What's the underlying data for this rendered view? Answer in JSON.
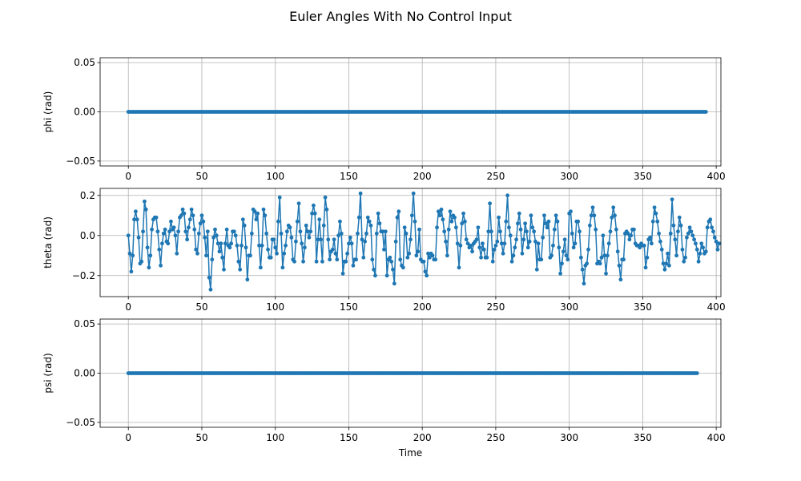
{
  "figure": {
    "title": "Euler Angles With No Control Input",
    "line_color": "#1f77b4",
    "grid_color": "#b0b0b0"
  },
  "chart_data": [
    {
      "type": "line",
      "ylabel": "phi (rad)",
      "xlabel": "",
      "x_start": 0,
      "x_step": 1,
      "values": [
        0,
        0,
        0,
        0,
        0,
        0,
        0,
        0,
        0,
        0,
        0,
        0,
        0,
        0,
        0,
        0,
        0,
        0,
        0,
        0,
        0,
        0,
        0,
        0,
        0,
        0,
        0,
        0,
        0,
        0,
        0,
        0,
        0,
        0,
        0,
        0,
        0,
        0,
        0,
        0,
        0,
        0,
        0,
        0,
        0,
        0,
        0,
        0,
        0,
        0,
        0,
        0,
        0,
        0,
        0,
        0,
        0,
        0,
        0,
        0,
        0,
        0,
        0,
        0,
        0,
        0,
        0,
        0,
        0,
        0,
        0,
        0,
        0,
        0,
        0,
        0,
        0,
        0,
        0,
        0,
        0,
        0,
        0,
        0,
        0,
        0,
        0,
        0,
        0,
        0,
        0,
        0,
        0,
        0,
        0,
        0,
        0,
        0,
        0,
        0,
        0,
        0,
        0,
        0,
        0,
        0,
        0,
        0,
        0,
        0,
        0,
        0,
        0,
        0,
        0,
        0,
        0,
        0,
        0,
        0,
        0,
        0,
        0,
        0,
        0,
        0,
        0,
        0,
        0,
        0,
        0,
        0,
        0,
        0,
        0,
        0,
        0,
        0,
        0,
        0,
        0,
        0,
        0,
        0,
        0,
        0,
        0,
        0,
        0,
        0,
        0,
        0,
        0,
        0,
        0,
        0,
        0,
        0,
        0,
        0,
        0,
        0,
        0,
        0,
        0,
        0,
        0,
        0,
        0,
        0,
        0,
        0,
        0,
        0,
        0,
        0,
        0,
        0,
        0,
        0,
        0,
        0,
        0,
        0,
        0,
        0,
        0,
        0,
        0,
        0,
        0,
        0,
        0,
        0,
        0,
        0,
        0,
        0,
        0,
        0,
        0,
        0,
        0,
        0,
        0,
        0,
        0,
        0,
        0,
        0,
        0,
        0,
        0,
        0,
        0,
        0,
        0,
        0,
        0,
        0,
        0,
        0,
        0,
        0,
        0,
        0,
        0,
        0,
        0,
        0,
        0,
        0,
        0,
        0,
        0,
        0,
        0,
        0,
        0,
        0,
        0,
        0,
        0,
        0,
        0,
        0,
        0,
        0,
        0,
        0,
        0,
        0,
        0,
        0,
        0,
        0,
        0,
        0,
        0,
        0,
        0,
        0,
        0,
        0,
        0,
        0,
        0,
        0,
        0,
        0,
        0,
        0,
        0,
        0,
        0,
        0,
        0,
        0,
        0,
        0,
        0,
        0,
        0,
        0,
        0,
        0,
        0,
        0,
        0,
        0,
        0,
        0,
        0,
        0,
        0,
        0,
        0,
        0,
        0,
        0,
        0,
        0,
        0,
        0,
        0,
        0,
        0,
        0,
        0,
        0,
        0,
        0,
        0,
        0,
        0,
        0,
        0,
        0,
        0,
        0,
        0,
        0,
        0,
        0,
        0,
        0,
        0,
        0,
        0,
        0,
        0,
        0,
        0,
        0,
        0,
        0,
        0,
        0,
        0,
        0,
        0,
        0,
        0,
        0,
        0,
        0,
        0,
        0,
        0,
        0,
        0,
        0,
        0,
        0,
        0,
        0,
        0,
        0,
        0,
        0,
        0,
        0,
        0,
        0,
        0,
        0,
        0,
        0,
        0,
        0,
        0,
        0,
        0,
        0,
        0,
        0,
        0,
        0,
        0,
        0,
        0,
        0,
        0,
        0,
        0,
        0,
        0,
        0,
        0,
        0,
        0,
        0,
        0,
        0
      ],
      "xlim": [
        -19.2,
        403.2
      ],
      "ylim": [
        -0.055,
        0.055
      ],
      "xticks": [
        0,
        50,
        100,
        150,
        200,
        250,
        300,
        350,
        400
      ],
      "yticks": [
        -0.05,
        0.0,
        0.05
      ],
      "ytick_labels": [
        "−0.05",
        "0.00",
        "0.05"
      ],
      "grid": true,
      "marker": "circle"
    },
    {
      "type": "line",
      "ylabel": "theta (rad)",
      "xlabel": "",
      "x_start": 0,
      "x_step": 1,
      "values": [
        0,
        -0.09,
        -0.18,
        -0.1,
        0.08,
        0.12,
        0.08,
        -0.01,
        -0.14,
        -0.13,
        0.02,
        0.17,
        0.13,
        -0.06,
        -0.16,
        -0.1,
        0.03,
        0.08,
        0.09,
        0.09,
        0.02,
        -0.07,
        -0.15,
        -0.04,
        0.01,
        0.03,
        -0.03,
        -0.04,
        0.02,
        0.07,
        0.03,
        0.04,
        0.0,
        -0.09,
        0.02,
        0.09,
        0.1,
        0.13,
        0.11,
        0.02,
        -0.02,
        0.04,
        0.08,
        0.13,
        0.1,
        0.03,
        -0.07,
        -0.09,
        0.01,
        0.06,
        0.1,
        0.07,
        -0.01,
        -0.1,
        0.02,
        -0.21,
        -0.27,
        -0.12,
        -0.01,
        0.03,
        0.0,
        -0.04,
        -0.08,
        -0.04,
        -0.11,
        -0.17,
        -0.04,
        0.03,
        -0.05,
        -0.06,
        -0.04,
        0.02,
        0.02,
        0.0,
        -0.05,
        -0.13,
        -0.17,
        -0.05,
        0.08,
        0.05,
        -0.06,
        -0.22,
        -0.1,
        -0.1,
        0.01,
        0.13,
        0.12,
        0.08,
        0.11,
        -0.05,
        -0.16,
        -0.05,
        0.13,
        0.1,
        0.01,
        -0.07,
        -0.11,
        -0.11,
        -0.02,
        -0.02,
        -0.06,
        -0.09,
        0.07,
        0.19,
        0.01,
        -0.16,
        -0.09,
        -0.05,
        0.02,
        0.05,
        0.04,
        -0.01,
        -0.12,
        -0.13,
        -0.03,
        0.07,
        0.16,
        0.02,
        -0.04,
        -0.13,
        -0.06,
        0.05,
        0.02,
        -0.01,
        0.02,
        0.11,
        0.15,
        0.11,
        -0.13,
        -0.02,
        0.08,
        -0.02,
        -0.13,
        0.05,
        0.19,
        0.13,
        -0.02,
        -0.12,
        -0.08,
        -0.07,
        -0.02,
        -0.09,
        -0.12,
        0.0,
        0.07,
        0.01,
        -0.19,
        -0.13,
        -0.13,
        -0.09,
        -0.04,
        -0.01,
        -0.04,
        -0.15,
        -0.12,
        -0.12,
        0.01,
        0.09,
        0.21,
        -0.02,
        -0.11,
        -0.03,
        0.01,
        0.09,
        0.07,
        0.05,
        -0.12,
        -0.17,
        -0.2,
        0.01,
        0.11,
        0.06,
        0.02,
        0.02,
        -0.07,
        0.02,
        -0.2,
        -0.12,
        -0.11,
        -0.13,
        -0.17,
        -0.24,
        -0.03,
        0.09,
        0.12,
        -0.12,
        -0.15,
        -0.16,
        0.04,
        0.01,
        -0.11,
        -0.09,
        -0.02,
        0.1,
        0.21,
        0.07,
        -0.1,
        -0.08,
        0.03,
        -0.12,
        -0.13,
        -0.13,
        -0.18,
        -0.2,
        -0.09,
        -0.11,
        -0.09,
        -0.1,
        -0.12,
        -0.12,
        0.04,
        0.12,
        0.1,
        0.13,
        0.08,
        0.02,
        -0.03,
        -0.1,
        0.03,
        0.12,
        0.07,
        0.1,
        0.09,
        0.04,
        -0.04,
        -0.16,
        -0.05,
        0.06,
        0.11,
        0.07,
        -0.02,
        -0.04,
        -0.06,
        -0.05,
        -0.08,
        -0.04,
        -0.03,
        -0.02,
        0.04,
        -0.06,
        -0.11,
        -0.04,
        -0.07,
        -0.11,
        -0.11,
        0.02,
        0.16,
        0.02,
        -0.13,
        -0.07,
        -0.05,
        -0.03,
        0.09,
        0.02,
        -0.04,
        -0.09,
        -0.04,
        0.07,
        0.2,
        0.04,
        0.0,
        -0.13,
        -0.1,
        -0.06,
        -0.02,
        0.06,
        0.11,
        0.03,
        -0.09,
        -0.02,
        0.06,
        0.02,
        -0.06,
        -0.03,
        0.1,
        0.04,
        0.02,
        -0.03,
        -0.17,
        -0.04,
        -0.12,
        -0.12,
        -0.01,
        0.1,
        0.06,
        0.04,
        0.07,
        -0.11,
        -0.1,
        -0.05,
        0.03,
        0.1,
        0.07,
        -0.06,
        -0.19,
        -0.14,
        -0.08,
        -0.02,
        -0.1,
        -0.12,
        0.11,
        0.12,
        0.01,
        -0.06,
        -0.04,
        0.07,
        0.07,
        0.02,
        -0.11,
        -0.17,
        -0.24,
        -0.15,
        -0.14,
        -0.07,
        0.05,
        0.1,
        0.14,
        0.1,
        0.03,
        -0.14,
        -0.13,
        -0.14,
        -0.11,
        0.0,
        -0.1,
        -0.19,
        -0.1,
        -0.04,
        0.02,
        0.09,
        0.14,
        0.1,
        0.03,
        -0.08,
        -0.15,
        -0.22,
        -0.12,
        -0.12,
        0.01,
        0.02,
        0.01,
        -0.02,
        0.0,
        0.03,
        0.03,
        -0.04,
        -0.05,
        -0.05,
        -0.06,
        -0.04,
        -0.05,
        -0.05,
        -0.16,
        -0.11,
        -0.02,
        -0.01,
        -0.04,
        0.07,
        0.14,
        0.11,
        0.07,
        0.01,
        -0.03,
        -0.07,
        -0.14,
        -0.17,
        -0.14,
        -0.09,
        -0.15,
        0.01,
        0.18,
        0.05,
        -0.02,
        -0.1,
        0.02,
        0.09,
        0.05,
        -0.07,
        -0.13,
        -0.11,
        -0.01,
        0.01,
        0.04,
        0.02,
        0.0,
        -0.02,
        -0.04,
        -0.07,
        -0.13,
        -0.09,
        -0.04,
        -0.06,
        -0.09,
        -0.08,
        0.04,
        0.07,
        0.08,
        0.04,
        0.02,
        -0.01,
        -0.03,
        -0.07,
        -0.04
      ],
      "xlim": [
        -19.2,
        403.2
      ],
      "ylim": [
        -0.305,
        0.235
      ],
      "xticks": [
        0,
        50,
        100,
        150,
        200,
        250,
        300,
        350,
        400
      ],
      "yticks": [
        -0.2,
        0.0,
        0.2
      ],
      "ytick_labels": [
        "−0.2",
        "0.0",
        "0.2"
      ],
      "grid": true,
      "marker": "circle"
    },
    {
      "type": "line",
      "ylabel": "psi (rad)",
      "xlabel": "Time",
      "x_start": 0,
      "x_step": 1,
      "values": [
        0,
        0,
        0,
        0,
        0,
        0,
        0,
        0,
        0,
        0,
        0,
        0,
        0,
        0,
        0,
        0,
        0,
        0,
        0,
        0,
        0,
        0,
        0,
        0,
        0,
        0,
        0,
        0,
        0,
        0,
        0,
        0,
        0,
        0,
        0,
        0,
        0,
        0,
        0,
        0,
        0,
        0,
        0,
        0,
        0,
        0,
        0,
        0,
        0,
        0,
        0,
        0,
        0,
        0,
        0,
        0,
        0,
        0,
        0,
        0,
        0,
        0,
        0,
        0,
        0,
        0,
        0,
        0,
        0,
        0,
        0,
        0,
        0,
        0,
        0,
        0,
        0,
        0,
        0,
        0,
        0,
        0,
        0,
        0,
        0,
        0,
        0,
        0,
        0,
        0,
        0,
        0,
        0,
        0,
        0,
        0,
        0,
        0,
        0,
        0,
        0,
        0,
        0,
        0,
        0,
        0,
        0,
        0,
        0,
        0,
        0,
        0,
        0,
        0,
        0,
        0,
        0,
        0,
        0,
        0,
        0,
        0,
        0,
        0,
        0,
        0,
        0,
        0,
        0,
        0,
        0,
        0,
        0,
        0,
        0,
        0,
        0,
        0,
        0,
        0,
        0,
        0,
        0,
        0,
        0,
        0,
        0,
        0,
        0,
        0,
        0,
        0,
        0,
        0,
        0,
        0,
        0,
        0,
        0,
        0,
        0,
        0,
        0,
        0,
        0,
        0,
        0,
        0,
        0,
        0,
        0,
        0,
        0,
        0,
        0,
        0,
        0,
        0,
        0,
        0,
        0,
        0,
        0,
        0,
        0,
        0,
        0,
        0,
        0,
        0,
        0,
        0,
        0,
        0,
        0,
        0,
        0,
        0,
        0,
        0,
        0,
        0,
        0,
        0,
        0,
        0,
        0,
        0,
        0,
        0,
        0,
        0,
        0,
        0,
        0,
        0,
        0,
        0,
        0,
        0,
        0,
        0,
        0,
        0,
        0,
        0,
        0,
        0,
        0,
        0,
        0,
        0,
        0,
        0,
        0,
        0,
        0,
        0,
        0,
        0,
        0,
        0,
        0,
        0,
        0,
        0,
        0,
        0,
        0,
        0,
        0,
        0,
        0,
        0,
        0,
        0,
        0,
        0,
        0,
        0,
        0,
        0,
        0,
        0,
        0,
        0,
        0,
        0,
        0,
        0,
        0,
        0,
        0,
        0,
        0,
        0,
        0,
        0,
        0,
        0,
        0,
        0,
        0,
        0,
        0,
        0,
        0,
        0,
        0,
        0,
        0,
        0,
        0,
        0,
        0,
        0,
        0,
        0,
        0,
        0,
        0,
        0,
        0,
        0,
        0,
        0,
        0,
        0,
        0,
        0,
        0,
        0,
        0,
        0,
        0,
        0,
        0,
        0,
        0,
        0,
        0,
        0,
        0,
        0,
        0,
        0,
        0,
        0,
        0,
        0,
        0,
        0,
        0,
        0,
        0,
        0,
        0,
        0,
        0,
        0,
        0,
        0,
        0,
        0,
        0,
        0,
        0,
        0,
        0,
        0,
        0,
        0,
        0,
        0,
        0,
        0,
        0,
        0,
        0,
        0,
        0,
        0,
        0,
        0,
        0,
        0,
        0,
        0,
        0,
        0,
        0,
        0,
        0,
        0,
        0,
        0,
        0,
        0,
        0,
        0,
        0,
        0,
        0,
        0,
        0,
        0,
        0,
        0
      ],
      "xlim": [
        -19.2,
        403.2
      ],
      "ylim": [
        -0.055,
        0.055
      ],
      "xticks": [
        0,
        50,
        100,
        150,
        200,
        250,
        300,
        350,
        400
      ],
      "yticks": [
        -0.05,
        0.0,
        0.05
      ],
      "ytick_labels": [
        "−0.05",
        "0.00",
        "0.05"
      ],
      "grid": true,
      "marker": "circle"
    }
  ]
}
